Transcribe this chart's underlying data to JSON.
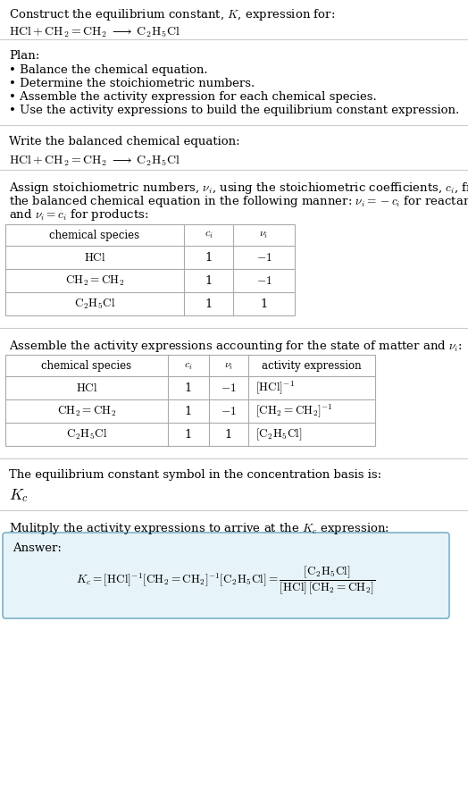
{
  "title_line1": "Construct the equilibrium constant, $K$, expression for:",
  "title_line2": "$\\mathrm{HCl + CH_2{=}CH_2 \\;\\longrightarrow\\; C_2H_5Cl}$",
  "plan_header": "Plan:",
  "plan_bullets": [
    "Balance the chemical equation.",
    "Determine the stoichiometric numbers.",
    "Assemble the activity expression for each chemical species.",
    "Use the activity expressions to build the equilibrium constant expression."
  ],
  "balanced_header": "Write the balanced chemical equation:",
  "balanced_eq": "$\\mathrm{HCl + CH_2{=}CH_2 \\;\\longrightarrow\\; C_2H_5Cl}$",
  "stoich_intro_lines": [
    "Assign stoichiometric numbers, $\\nu_i$, using the stoichiometric coefficients, $c_i$, from",
    "the balanced chemical equation in the following manner: $\\nu_i = -c_i$ for reactants",
    "and $\\nu_i = c_i$ for products:"
  ],
  "table1_headers": [
    "chemical species",
    "$c_i$",
    "$\\nu_i$"
  ],
  "table1_rows": [
    [
      "$\\mathrm{HCl}$",
      "1",
      "$-1$"
    ],
    [
      "$\\mathrm{CH_2{=}CH_2}$",
      "1",
      "$-1$"
    ],
    [
      "$\\mathrm{C_2H_5Cl}$",
      "1",
      "1"
    ]
  ],
  "activity_intro": "Assemble the activity expressions accounting for the state of matter and $\\nu_i$:",
  "table2_headers": [
    "chemical species",
    "$c_i$",
    "$\\nu_i$",
    "activity expression"
  ],
  "table2_rows": [
    [
      "$\\mathrm{HCl}$",
      "1",
      "$-1$",
      "$[\\mathrm{HCl}]^{-1}$"
    ],
    [
      "$\\mathrm{CH_2{=}CH_2}$",
      "1",
      "$-1$",
      "$[\\mathrm{CH_2{=}CH_2}]^{-1}$"
    ],
    [
      "$\\mathrm{C_2H_5Cl}$",
      "1",
      "1",
      "$[\\mathrm{C_2H_5Cl}]$"
    ]
  ],
  "kc_intro": "The equilibrium constant symbol in the concentration basis is:",
  "kc_symbol": "$K_c$",
  "multiply_intro": "Mulitply the activity expressions to arrive at the $K_c$ expression:",
  "answer_label": "Answer:",
  "answer_line1": "$K_c = [\\mathrm{HCl}]^{-1}\\,[\\mathrm{CH_2{=}CH_2}]^{-1}\\,[\\mathrm{C_2H_5Cl}]$",
  "answer_line2": "$= \\dfrac{[\\mathrm{C_2H_5Cl}]}{[\\mathrm{HCl}]\\,[\\mathrm{CH_2{=}CH_2}]}$",
  "answer_eq_combined": "$K_c = [\\mathrm{HCl}]^{-1}[\\mathrm{CH_2{=}CH_2}]^{-1}[\\mathrm{C_2H_5Cl}] = \\dfrac{[\\mathrm{C_2H_5Cl}]}{[\\mathrm{HCl}]\\,[\\mathrm{CH_2{=}CH_2}]}$",
  "bg_color": "#ffffff",
  "answer_box_facecolor": "#e6f3f8",
  "answer_box_edgecolor": "#7ab3c8",
  "table_border_color": "#aaaaaa",
  "text_color": "#000000",
  "font_size": 9.5
}
